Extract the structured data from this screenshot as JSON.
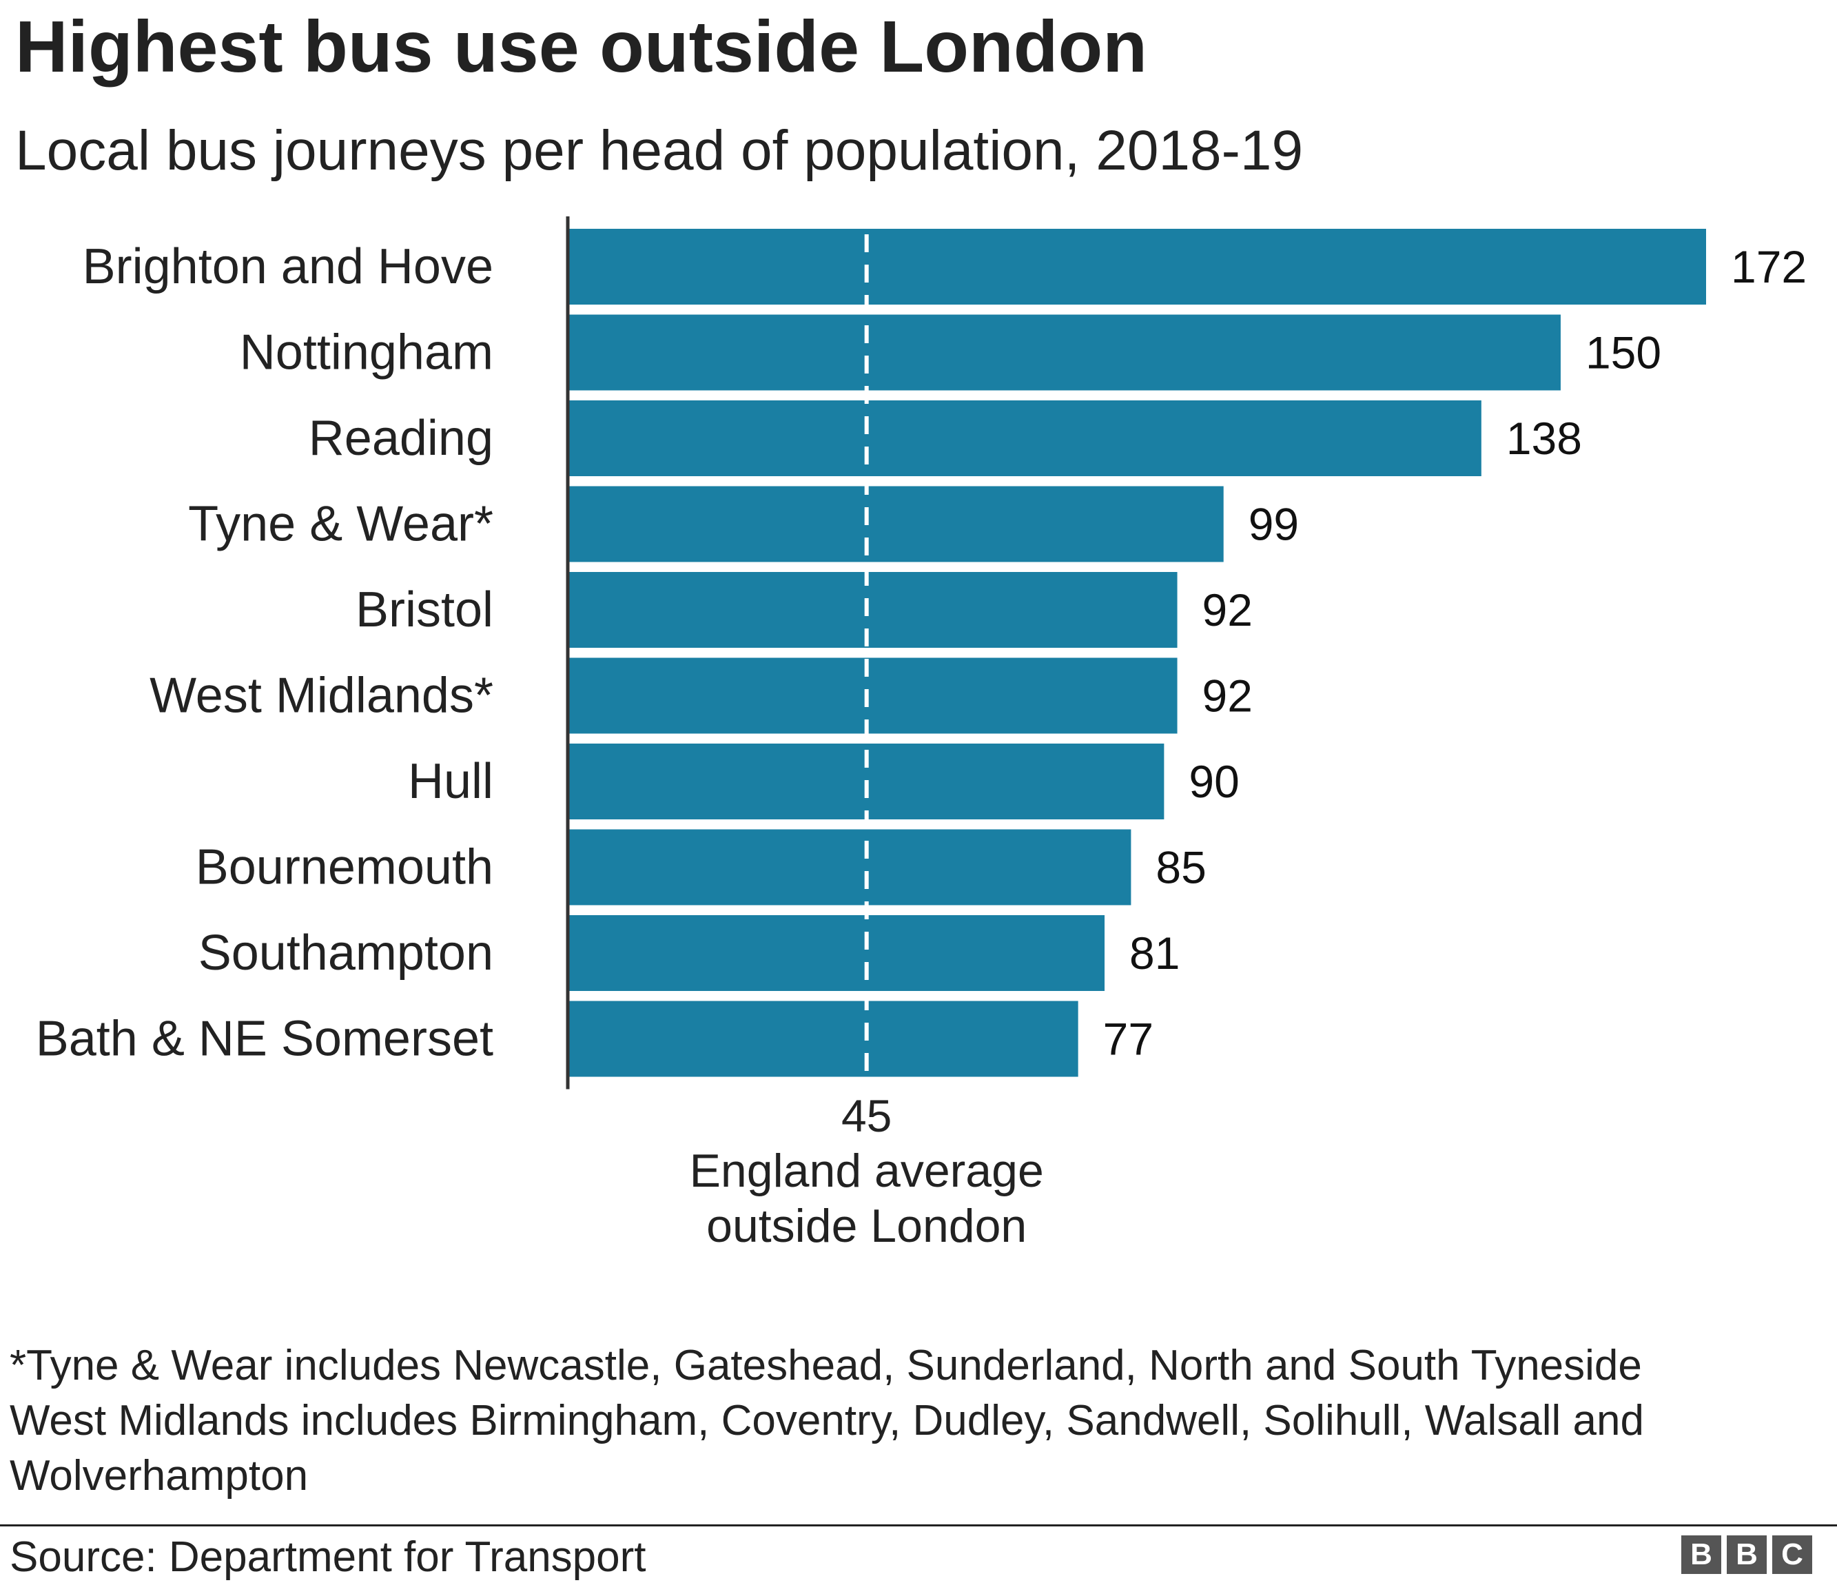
{
  "title": "Highest bus use outside London",
  "subtitle": "Local bus journeys per head of population, 2018-19",
  "chart_data": {
    "type": "bar",
    "orientation": "horizontal",
    "categories": [
      "Brighton and Hove",
      "Nottingham",
      "Reading",
      "Tyne & Wear*",
      "Bristol",
      "West Midlands*",
      "Hull",
      "Bournemouth",
      "Southampton",
      "Bath & NE Somerset"
    ],
    "values": [
      172,
      150,
      138,
      99,
      92,
      92,
      90,
      85,
      81,
      77
    ],
    "xlim": [
      0,
      172
    ],
    "bar_color": "#1a7fa3",
    "reference_line": {
      "value": 45,
      "value_label": "45",
      "label_line1": "England average",
      "label_line2": "outside London",
      "style": "dashed",
      "color": "#ffffff"
    }
  },
  "footnotes": [
    "*Tyne & Wear includes Newcastle, Gateshead, Sunderland, North and South Tyneside",
    "West Midlands includes Birmingham, Coventry, Dudley, Sandwell, Solihull, Walsall and",
    "Wolverhampton"
  ],
  "source": "Source: Department for Transport",
  "logo": [
    "B",
    "B",
    "C"
  ]
}
